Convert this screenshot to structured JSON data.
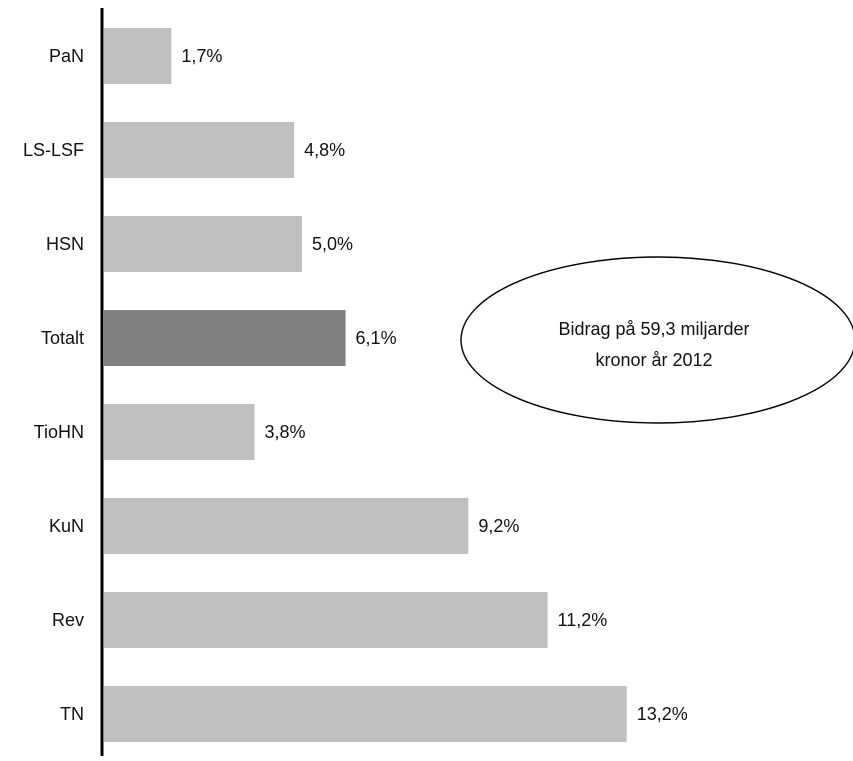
{
  "chart_data": {
    "type": "bar",
    "orientation": "horizontal",
    "categories": [
      "PaN",
      "LS-LSF",
      "HSN",
      "Totalt",
      "TioHN",
      "KuN",
      "Rev",
      "TN"
    ],
    "values": [
      1.7,
      4.8,
      5.0,
      6.1,
      3.8,
      9.2,
      11.2,
      13.2
    ],
    "data_labels": [
      "1,7%",
      "4,8%",
      "5,0%",
      "6,1%",
      "3,8%",
      "9,2%",
      "11,2%",
      "13,2%"
    ],
    "highlight_category": "Totalt",
    "xlim": [
      0,
      20
    ],
    "grid": false,
    "legend": "none",
    "colors": {
      "bar": "#c0c0c0",
      "highlight": "#808080",
      "axis": "#000000",
      "text": "#111111"
    },
    "annotation": {
      "shape": "ellipse",
      "lines": [
        "Bidrag på 59,3 miljarder",
        "kronor år 2012"
      ]
    }
  }
}
